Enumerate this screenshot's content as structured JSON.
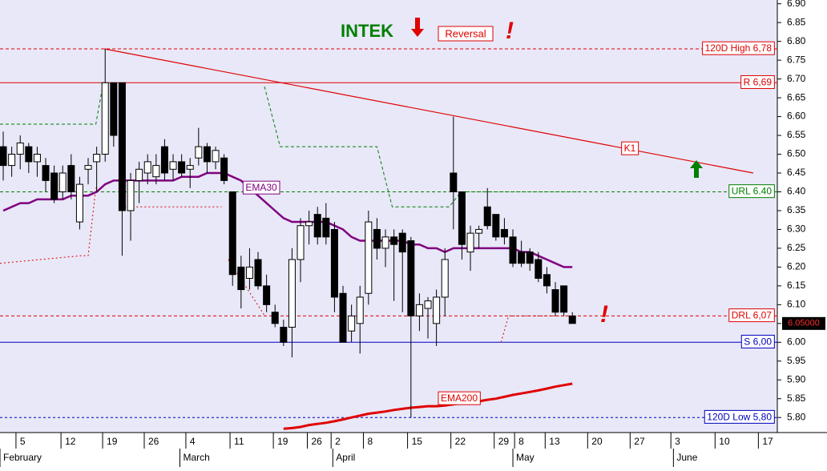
{
  "chart_data": {
    "type": "candlestick",
    "title": "INTEK",
    "signal": "Reversal",
    "alert": "!",
    "xlim": [
      -0.38,
      91.13
    ],
    "ylim": [
      5.76,
      6.91
    ],
    "yticks": [
      {
        "value": 5.8,
        "label": "5.80"
      },
      5.85,
      {
        "value": 5.9,
        "label": "5.90"
      },
      5.95,
      {
        "value": 6,
        "label": "6.00"
      },
      6.05,
      {
        "value": 6.1,
        "label": "6.10"
      },
      6.15,
      {
        "value": 6.2,
        "label": "6.20"
      },
      6.25,
      {
        "value": 6.3,
        "label": "6.30"
      },
      6.35,
      {
        "value": 6.4,
        "label": "6.40"
      },
      6.45,
      {
        "value": 6.5,
        "label": "6.50"
      },
      6.55,
      {
        "value": 6.6,
        "label": "6.60"
      },
      6.65,
      {
        "value": 6.7,
        "label": "6.70"
      },
      6.75,
      {
        "value": 6.8,
        "label": "6.80"
      },
      6.85,
      {
        "value": 6.9,
        "label": "6.90"
      }
    ],
    "xticks": [
      {
        "value": 1.5,
        "label": "5"
      },
      {
        "value": 6.8,
        "label": "12"
      },
      {
        "value": 11.7,
        "label": "19"
      },
      {
        "value": 16.6,
        "label": "26"
      },
      {
        "value": 21.5,
        "label": "4"
      },
      {
        "value": 26.7,
        "label": "11"
      },
      {
        "value": 31.8,
        "label": "19"
      },
      {
        "value": 35.8,
        "label": "26"
      },
      {
        "value": 38.6,
        "label": "2"
      },
      {
        "value": 42.4,
        "label": "8"
      },
      {
        "value": 47.6,
        "label": "15"
      },
      {
        "value": 52.7,
        "label": "22"
      },
      {
        "value": 57.8,
        "label": "29"
      },
      {
        "value": 60.2,
        "label": "8"
      },
      {
        "value": 63.8,
        "label": "13"
      },
      {
        "value": 68.8,
        "label": "20"
      },
      {
        "value": 73.8,
        "label": "27"
      },
      {
        "value": 78.6,
        "label": "3"
      },
      {
        "value": 83.8,
        "label": "10"
      },
      {
        "value": 88.9,
        "label": "17"
      }
    ],
    "months": [
      {
        "value": -0.38,
        "label": "February"
      },
      {
        "value": 20.8,
        "label": "March"
      },
      {
        "value": 38.8,
        "label": "April"
      },
      {
        "value": 60,
        "label": "May"
      },
      {
        "value": 78.9,
        "label": "June"
      }
    ],
    "open": [
      6.52,
      6.47,
      6.5,
      6.52,
      6.48,
      6.47,
      6.45,
      6.4,
      6.47,
      6.32,
      6.46,
      6.48,
      6.5,
      6.69,
      6.69,
      6.35,
      6.43,
      6.45,
      6.44,
      6.52,
      6.46,
      6.48,
      6.46,
      6.49,
      6.52,
      6.48,
      6.49,
      6.4,
      6.2,
      6.17,
      6.22,
      6.15,
      6.08,
      6.04,
      6.04,
      6.22,
      6.31,
      6.34,
      6.33,
      6.3,
      6.13,
      6.03,
      6.05,
      6.13,
      6.3,
      6.25,
      6.28,
      6.29,
      6.27,
      6.07,
      6.09,
      6.05,
      6.12,
      6.45,
      6.4,
      6.24,
      6.29,
      6.36,
      6.34,
      6.3,
      6.28,
      6.24,
      6.24,
      6.22,
      6.18,
      6.14,
      6.15,
      6.07
    ],
    "high": [
      6.56,
      6.52,
      6.55,
      6.53,
      6.52,
      6.49,
      6.47,
      6.47,
      6.5,
      6.44,
      6.49,
      6.52,
      6.78,
      6.69,
      6.69,
      6.45,
      6.48,
      6.5,
      6.5,
      6.54,
      6.5,
      6.5,
      6.49,
      6.57,
      6.53,
      6.52,
      6.5,
      6.4,
      6.23,
      6.25,
      6.24,
      6.18,
      6.1,
      6.06,
      6.25,
      6.33,
      6.35,
      6.36,
      6.37,
      6.32,
      6.15,
      6.1,
      6.15,
      6.35,
      6.33,
      6.3,
      6.3,
      6.3,
      6.28,
      6.13,
      6.12,
      6.14,
      6.25,
      6.6,
      6.4,
      6.31,
      6.31,
      6.41,
      6.34,
      6.33,
      6.3,
      6.27,
      6.25,
      6.24,
      6.2,
      6.16,
      6.15,
      6.08
    ],
    "low": [
      6.43,
      6.44,
      6.46,
      6.45,
      6.44,
      6.4,
      6.37,
      6.38,
      6.38,
      6.3,
      6.42,
      6.4,
      6.48,
      6.52,
      6.23,
      6.27,
      6.37,
      6.42,
      6.42,
      6.43,
      6.43,
      6.44,
      6.41,
      6.47,
      6.45,
      6.46,
      6.42,
      6.15,
      6.09,
      6.14,
      6.14,
      6.08,
      6.04,
      5.99,
      5.96,
      6.16,
      6.26,
      6.26,
      6.26,
      6.08,
      6.0,
      6.0,
      5.97,
      6.1,
      6.22,
      6.2,
      6.11,
      6.08,
      5.8,
      6.03,
      6.01,
      5.99,
      6.07,
      6.3,
      6.22,
      6.19,
      6.25,
      6.3,
      6.27,
      6.26,
      6.2,
      6.2,
      6.19,
      6.16,
      6.13,
      6.07,
      6.07,
      6.05
    ],
    "close": [
      6.47,
      6.5,
      6.53,
      6.48,
      6.5,
      6.43,
      6.38,
      6.45,
      6.4,
      6.42,
      6.47,
      6.5,
      6.69,
      6.55,
      6.35,
      6.43,
      6.46,
      6.48,
      6.47,
      6.45,
      6.48,
      6.45,
      6.47,
      6.52,
      6.48,
      6.51,
      6.43,
      6.18,
      6.14,
      6.2,
      6.15,
      6.1,
      6.05,
      6.0,
      6.22,
      6.31,
      6.32,
      6.28,
      6.28,
      6.12,
      6.0,
      6.07,
      6.12,
      6.32,
      6.25,
      6.28,
      6.26,
      6.24,
      6.07,
      6.1,
      6.11,
      6.12,
      6.22,
      6.4,
      6.26,
      6.29,
      6.3,
      6.31,
      6.28,
      6.28,
      6.21,
      6.21,
      6.21,
      6.17,
      6.15,
      6.08,
      6.08,
      6.05
    ],
    "last_price": {
      "value": 6.05,
      "label": "6.05000"
    },
    "indicators": [
      {
        "name": "EMA30",
        "color": "#800080",
        "width": 2.5,
        "values": [
          6.35,
          6.36,
          6.37,
          6.37,
          6.38,
          6.38,
          6.38,
          6.38,
          6.39,
          6.39,
          6.39,
          6.4,
          6.42,
          6.43,
          6.43,
          6.43,
          6.43,
          6.43,
          6.43,
          6.43,
          6.43,
          6.44,
          6.44,
          6.44,
          6.45,
          6.45,
          6.45,
          6.44,
          6.43,
          6.41,
          6.39,
          6.37,
          6.35,
          6.33,
          6.32,
          6.32,
          6.32,
          6.32,
          6.32,
          6.31,
          6.3,
          6.28,
          6.27,
          6.27,
          6.27,
          6.27,
          6.27,
          6.27,
          6.26,
          6.26,
          6.25,
          6.25,
          6.24,
          6.25,
          6.25,
          6.25,
          6.25,
          6.25,
          6.25,
          6.25,
          6.25,
          6.24,
          6.24,
          6.23,
          6.22,
          6.21,
          6.2,
          6.2
        ]
      },
      {
        "name": "EMA200",
        "color": "#e00000",
        "width": 3,
        "values": [
          null,
          null,
          null,
          null,
          null,
          null,
          null,
          null,
          null,
          null,
          null,
          null,
          null,
          null,
          null,
          null,
          null,
          null,
          null,
          null,
          null,
          null,
          null,
          null,
          null,
          null,
          null,
          null,
          null,
          null,
          null,
          null,
          null,
          5.77,
          5.772,
          5.775,
          5.78,
          5.783,
          5.786,
          5.79,
          5.795,
          5.8,
          5.805,
          5.81,
          5.813,
          5.816,
          5.82,
          5.823,
          5.826,
          5.828,
          5.83,
          5.83,
          5.832,
          5.835,
          5.838,
          5.84,
          5.843,
          5.847,
          5.85,
          5.855,
          5.86,
          5.864,
          5.868,
          5.872,
          5.877,
          5.882,
          5.886,
          5.89
        ]
      }
    ],
    "stops": [
      {
        "color": "#008000",
        "dash": "4,3",
        "x": [
          -0.38,
          10.9,
          11.7,
          null,
          30.75,
          32.6,
          44,
          45.8,
          52.5,
          53.9,
          67.5
        ],
        "values": [
          6.58,
          6.58,
          6.68,
          null,
          6.68,
          6.52,
          6.52,
          6.36,
          6.36,
          6.4,
          6.4
        ]
      },
      {
        "color": "#e00000",
        "dash": "2,3",
        "x": [
          -0.38,
          9.1,
          10,
          10.9,
          11.8,
          null,
          13.8,
          25.7,
          null,
          26.5,
          30.8,
          null,
          58.6,
          59.5,
          67.5
        ],
        "values": [
          6.21,
          6.23,
          6.23,
          6.41,
          6.41,
          null,
          6.36,
          6.36,
          null,
          6.22,
          6.07,
          null,
          6.0,
          6.07,
          6.07
        ]
      }
    ],
    "levels": [
      {
        "value": 6.78,
        "label": "120D High 6,78",
        "color": "#e00000",
        "dash": "4,3"
      },
      {
        "value": 6.69,
        "label": "R 6,69",
        "color": "#e00000",
        "dash": ""
      },
      {
        "value": 6.4,
        "label": "URL 6.40",
        "color": "#008000",
        "dash": "4,3"
      },
      {
        "value": 6.07,
        "label": "DRL 6,07",
        "color": "#e00000",
        "dash": "4,3"
      },
      {
        "value": 6.0,
        "label": "S 6,00",
        "color": "#0000c0",
        "dash": ""
      },
      {
        "value": 5.8,
        "label": "120D Low 5,80",
        "color": "#0000c0",
        "dash": "3,3"
      }
    ],
    "trendline": {
      "label": "K1",
      "color": "#e00000",
      "x": [
        11.9,
        88.3
      ],
      "values": [
        6.78,
        6.45
      ]
    }
  }
}
